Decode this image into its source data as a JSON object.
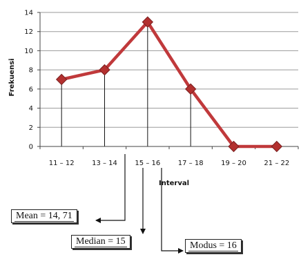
{
  "chart_data": {
    "type": "line",
    "categories": [
      "11 – 12",
      "13 – 14",
      "15 – 16",
      "17 – 18",
      "19 – 20",
      "21 – 22"
    ],
    "series": [
      {
        "values": [
          7,
          8,
          13,
          6,
          0,
          0
        ]
      }
    ],
    "ylim": [
      0,
      14
    ],
    "yticks": [
      0,
      2,
      4,
      6,
      8,
      10,
      12,
      14
    ],
    "xlabel": "Interval",
    "ylabel": "Frekuensi",
    "grid": true,
    "drop_lines": true,
    "series_color": "#c0393b",
    "marker_color": "#b3302f"
  },
  "annotations": {
    "mean": "Mean = 14, 71",
    "median": "Median = 15",
    "modus": "Modus = 16"
  }
}
